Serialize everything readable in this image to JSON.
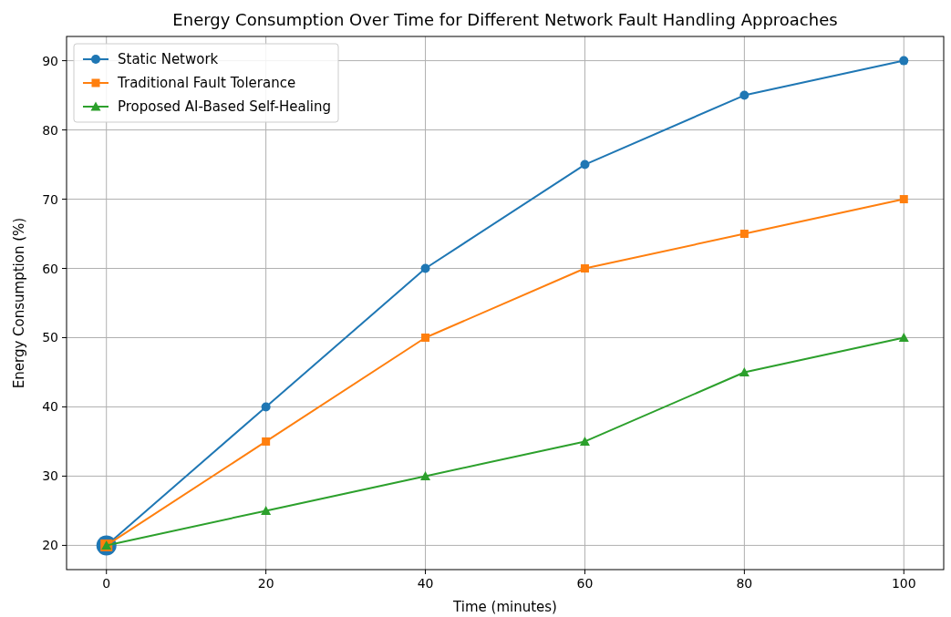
{
  "chart_data": {
    "type": "line",
    "title": "Energy Consumption Over Time for Different Network Fault Handling Approaches",
    "xlabel": "Time (minutes)",
    "ylabel": "Energy Consumption (%)",
    "x": [
      0,
      20,
      40,
      60,
      80,
      100
    ],
    "series": [
      {
        "name": "Static Network",
        "color": "#1f77b4",
        "marker": "circle",
        "values": [
          20,
          40,
          60,
          75,
          85,
          90
        ]
      },
      {
        "name": "Traditional Fault Tolerance",
        "color": "#ff7f0e",
        "marker": "square",
        "values": [
          20,
          35,
          50,
          60,
          65,
          70
        ]
      },
      {
        "name": "Proposed AI-Based Self-Healing",
        "color": "#2ca02c",
        "marker": "triangle",
        "values": [
          20,
          25,
          30,
          35,
          45,
          50
        ]
      }
    ],
    "xlim": [
      -5,
      105
    ],
    "xticks": [
      0,
      20,
      40,
      60,
      80,
      100
    ],
    "ylim": [
      16.5,
      93.5
    ],
    "yticks": [
      20,
      30,
      40,
      50,
      60,
      70,
      80,
      90
    ],
    "grid": true,
    "legend": "top left",
    "line_style": "solid"
  }
}
